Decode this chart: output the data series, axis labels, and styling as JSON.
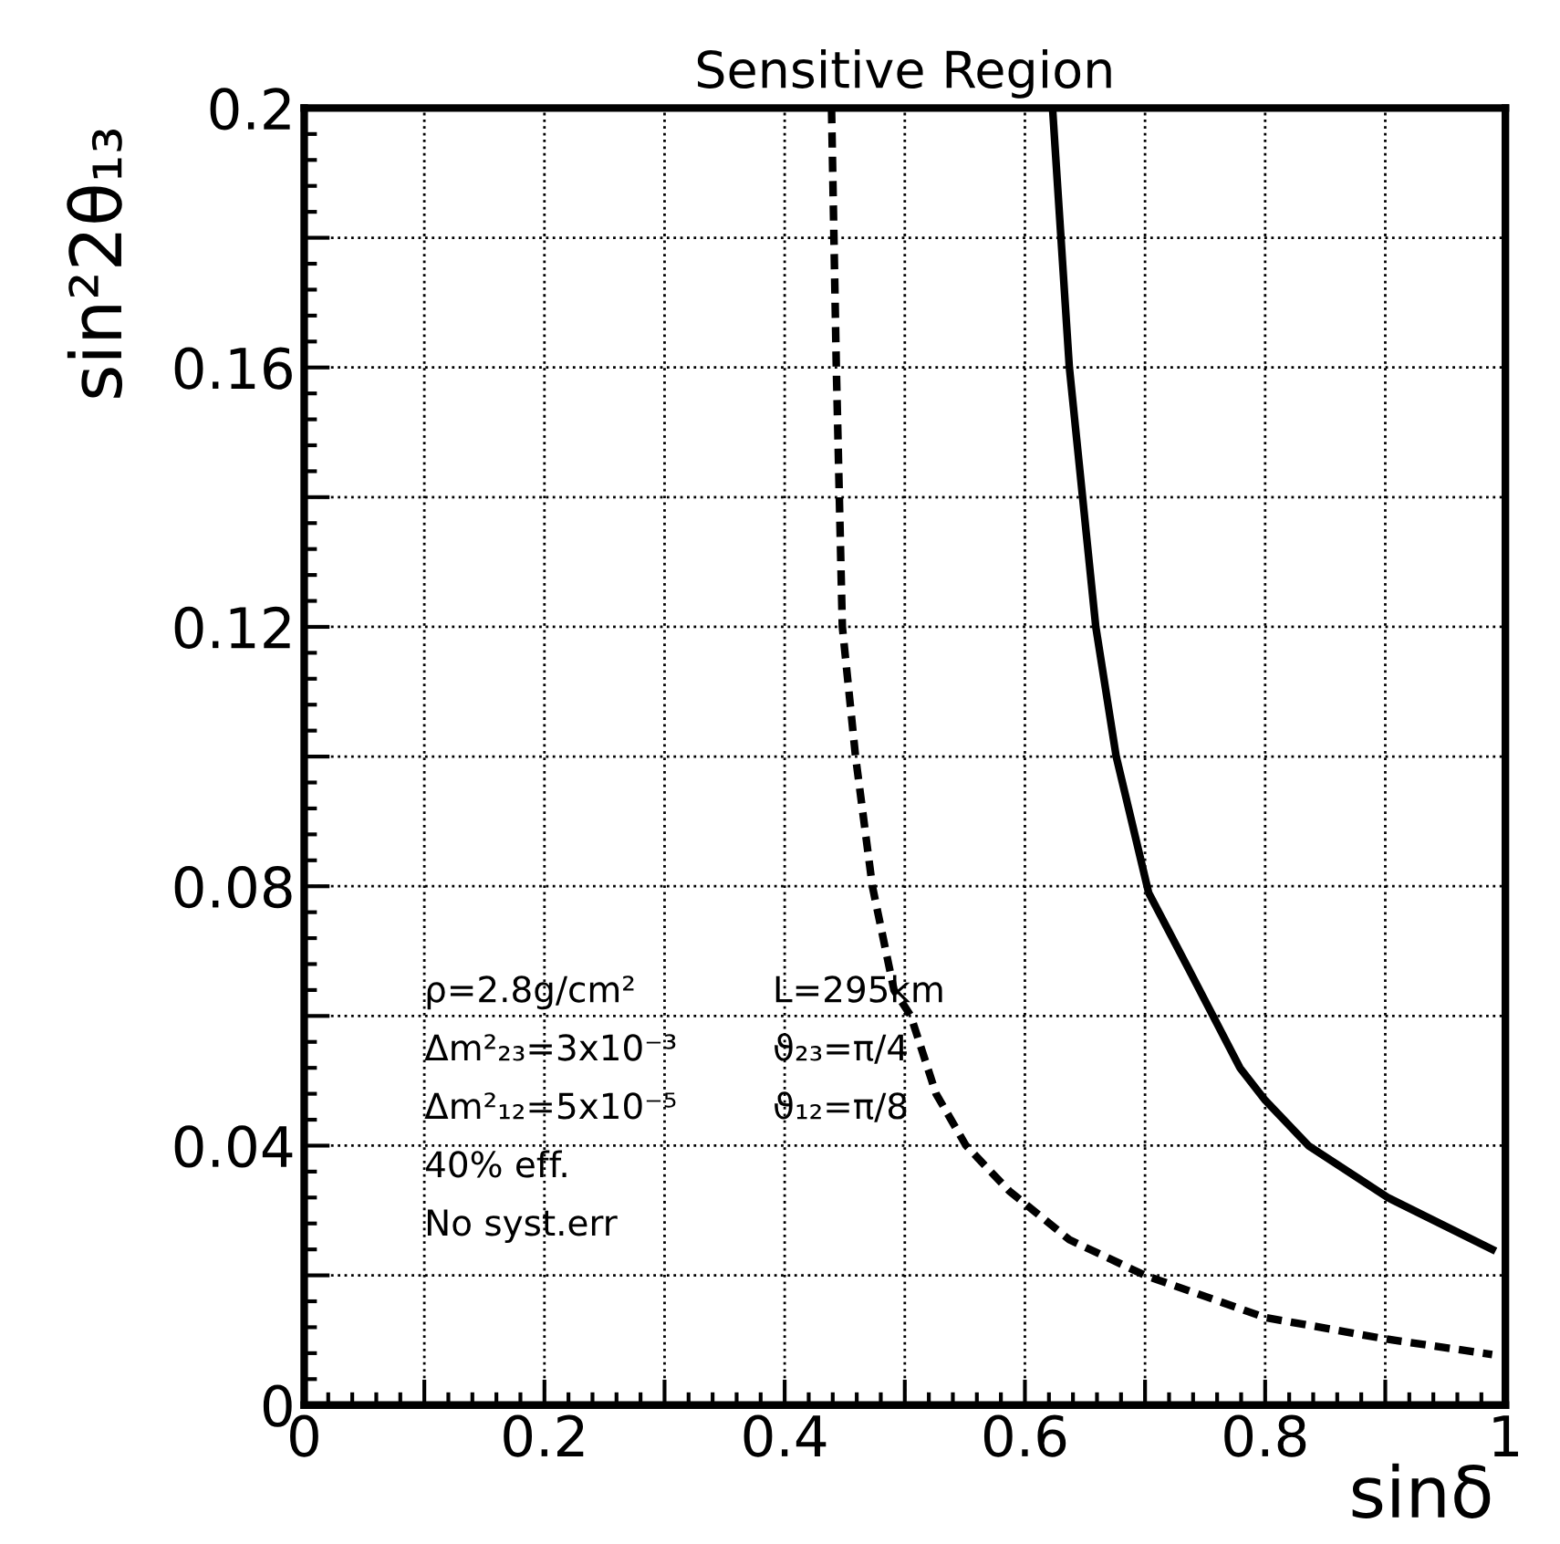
{
  "chart_data": {
    "type": "line",
    "title": "Sensitive Region",
    "xlabel": "sinδ",
    "ylabel": "sin²2θ₁₃",
    "xlim": [
      0,
      1
    ],
    "ylim": [
      0,
      0.2
    ],
    "xticks": [
      0,
      {
        "value": 0.1,
        "label": null
      },
      0.2,
      {
        "value": 0.3,
        "label": null
      },
      0.4,
      {
        "value": 0.5,
        "label": null
      },
      0.6,
      {
        "value": 0.7,
        "label": null
      },
      0.8,
      {
        "value": 0.9,
        "label": null
      },
      1
    ],
    "yticks": [
      0,
      {
        "value": 0.02,
        "label": null
      },
      0.04,
      {
        "value": 0.06,
        "label": null
      },
      0.08,
      {
        "value": 0.1,
        "label": null
      },
      0.12,
      {
        "value": 0.14,
        "label": null
      },
      0.16,
      {
        "value": 0.18,
        "label": null
      },
      0.2
    ],
    "grid": true,
    "legend": false,
    "marker": "none",
    "series": [
      {
        "color": "#000000",
        "line_style": "solid",
        "x": [
          0.623,
          0.63,
          0.637,
          0.648,
          0.659,
          0.676,
          0.703,
          0.737,
          0.779,
          0.8,
          0.836,
          0.902,
          0.989
        ],
        "values": [
          0.2,
          0.18,
          0.16,
          0.14,
          0.12,
          0.1,
          0.079,
          0.067,
          0.052,
          0.047,
          0.04,
          0.032,
          0.024
        ]
      },
      {
        "color": "#000000",
        "line_style": "dashed",
        "x": [
          0.439,
          0.443,
          0.448,
          0.459,
          0.473,
          0.491,
          0.505,
          0.526,
          0.551,
          0.587,
          0.637,
          0.7,
          0.8,
          0.9,
          0.989
        ],
        "values": [
          0.2,
          0.16,
          0.12,
          0.1,
          0.08,
          0.064,
          0.06,
          0.048,
          0.04,
          0.033,
          0.0255,
          0.02,
          0.0135,
          0.0102,
          0.0078
        ]
      }
    ],
    "annotations": [
      "ρ=2.8g/cm²",
      "Δm²₂₃=3x10⁻³",
      "Δm²₁₂=5x10⁻⁵",
      "40% eff.",
      "No syst.err",
      "L=295km",
      "ϑ₂₃=π/4",
      "ϑ₁₂=π/8"
    ]
  }
}
